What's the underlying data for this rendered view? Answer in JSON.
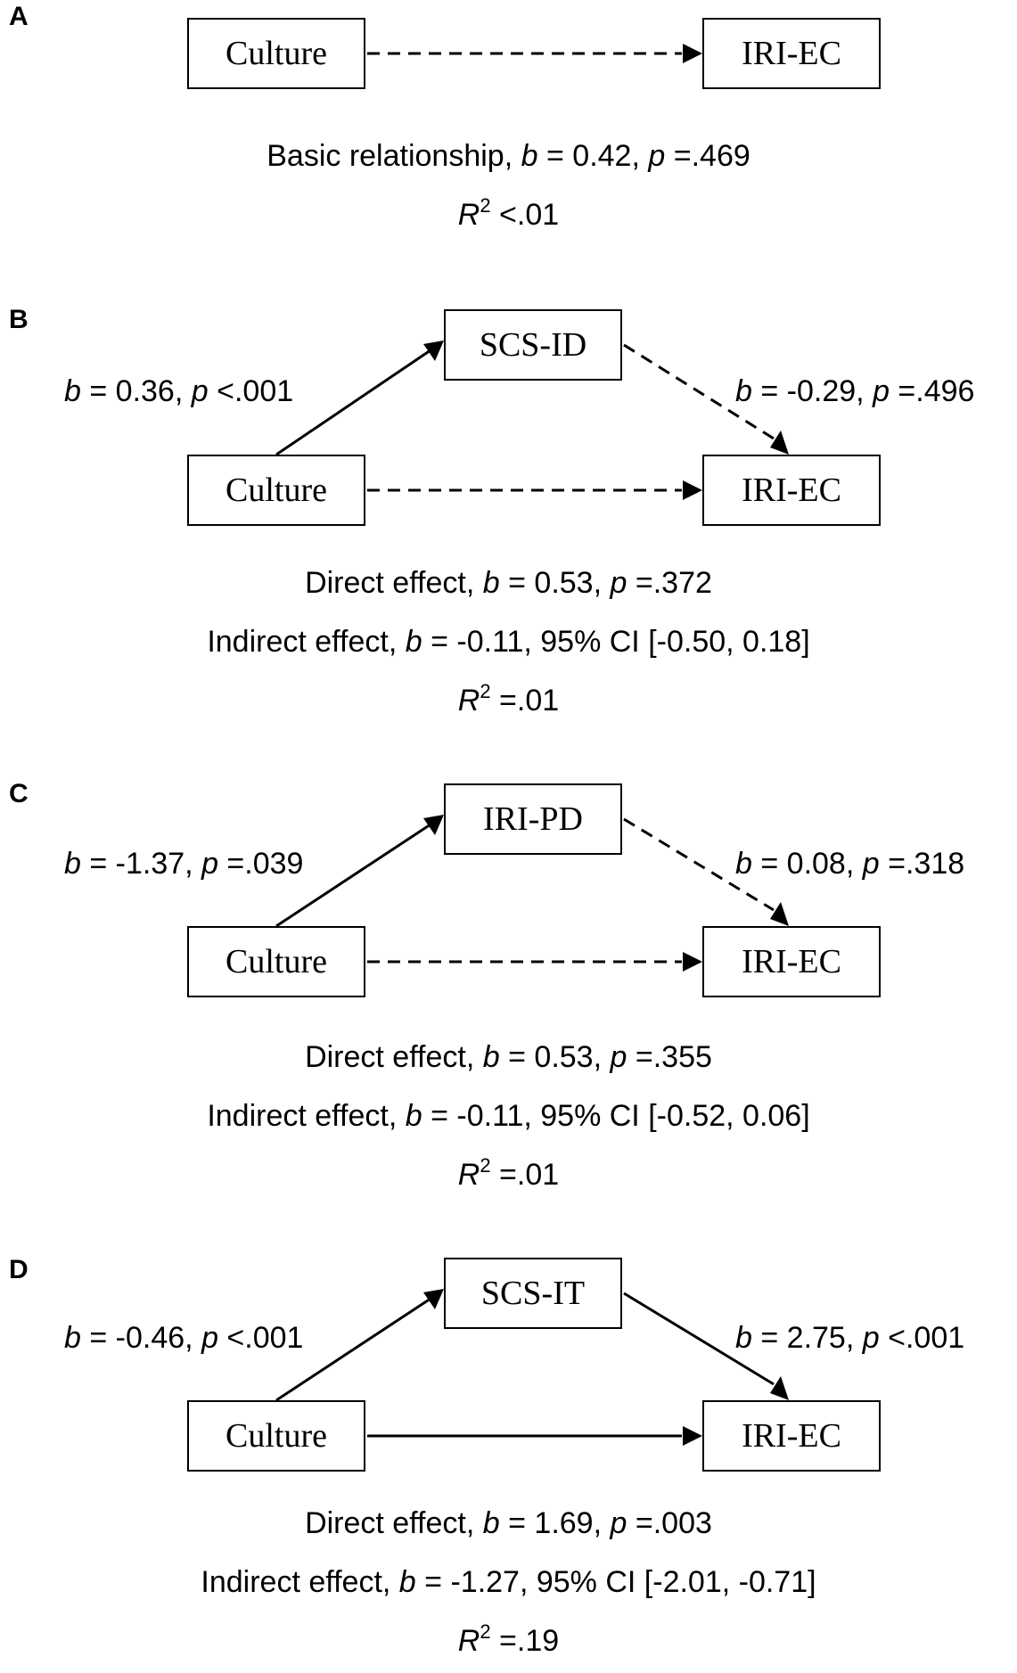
{
  "panels": [
    {
      "letter": "A",
      "left_box": "Culture",
      "right_box": "IRI-EC",
      "direct_path_style": "dashed",
      "stats": {
        "line1_prefix": "Basic relationship, ",
        "line1_b": "b",
        "line1_mid": " = 0.42, ",
        "line1_p": "p",
        "line1_end": " =.469",
        "r2_r": "R",
        "r2_sup": "2",
        "r2_end": " <.01"
      }
    },
    {
      "letter": "B",
      "left_box": "Culture",
      "mediator_box": "SCS-ID",
      "right_box": "IRI-EC",
      "a_path": {
        "b": "b",
        "text": " = 0.36, ",
        "p": "p",
        "end": " <.001",
        "style": "solid"
      },
      "b_path": {
        "b": "b",
        "text": " = -0.29, ",
        "p": "p",
        "end": " =.496",
        "style": "dashed"
      },
      "direct_path_style": "dashed",
      "stats": {
        "direct_prefix": "Direct effect, ",
        "direct_b": "b",
        "direct_mid": " = 0.53, ",
        "direct_p": "p",
        "direct_end": " =.372",
        "indirect_prefix": "Indirect effect, ",
        "indirect_b": "b",
        "indirect_end": " = -0.11, 95% CI [-0.50, 0.18]",
        "r2_r": "R",
        "r2_sup": "2",
        "r2_end": " =.01"
      }
    },
    {
      "letter": "C",
      "left_box": "Culture",
      "mediator_box": "IRI-PD",
      "right_box": "IRI-EC",
      "a_path": {
        "b": "b",
        "text": " = -1.37, ",
        "p": "p",
        "end": " =.039",
        "style": "solid"
      },
      "b_path": {
        "b": "b",
        "text": " = 0.08, ",
        "p": "p",
        "end": " =.318",
        "style": "dashed"
      },
      "direct_path_style": "dashed",
      "stats": {
        "direct_prefix": "Direct effect, ",
        "direct_b": "b",
        "direct_mid": " = 0.53, ",
        "direct_p": "p",
        "direct_end": " =.355",
        "indirect_prefix": "Indirect effect, ",
        "indirect_b": "b",
        "indirect_end": " = -0.11, 95% CI [-0.52, 0.06]",
        "r2_r": "R",
        "r2_sup": "2",
        "r2_end": " =.01"
      }
    },
    {
      "letter": "D",
      "left_box": "Culture",
      "mediator_box": "SCS-IT",
      "right_box": "IRI-EC",
      "a_path": {
        "b": "b",
        "text": " = -0.46, ",
        "p": "p",
        "end": " <.001",
        "style": "solid"
      },
      "b_path": {
        "b": "b",
        "text": " = 2.75, ",
        "p": "p",
        "end": " <.001",
        "style": "solid"
      },
      "direct_path_style": "solid",
      "stats": {
        "direct_prefix": "Direct effect, ",
        "direct_b": "b",
        "direct_mid": " = 1.69, ",
        "direct_p": "p",
        "direct_end": " =.003",
        "indirect_prefix": "Indirect effect, ",
        "indirect_b": "b",
        "indirect_end": " = -1.27, 95% CI [-2.01, -0.71]",
        "r2_r": "R",
        "r2_sup": "2",
        "r2_end": " =.19"
      }
    }
  ]
}
